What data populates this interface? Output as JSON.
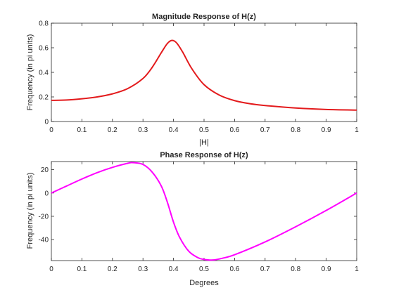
{
  "chart_data": [
    {
      "type": "line",
      "title": "Magnitude Response of H(z)",
      "xlabel": "|H|",
      "ylabel": "Frequency (in pi units)",
      "xlim": [
        0,
        1
      ],
      "ylim": [
        0,
        0.8
      ],
      "xticks": [
        0,
        0.1,
        0.2,
        0.3,
        0.4,
        0.5,
        0.6,
        0.7,
        0.8,
        0.9,
        1
      ],
      "xtick_labels": [
        "0",
        "0.1",
        "0.2",
        "0.3",
        "0.4",
        "0.5",
        "0.6",
        "0.7",
        "0.8",
        "0.9",
        "1"
      ],
      "yticks": [
        0,
        0.2,
        0.4,
        0.6,
        0.8
      ],
      "ytick_labels": [
        "0",
        "0.2",
        "0.4",
        "0.6",
        "0.8"
      ],
      "grid": false,
      "series": [
        {
          "color": "#e31a1c",
          "x": [
            0,
            0.05,
            0.1,
            0.15,
            0.2,
            0.25,
            0.3,
            0.33,
            0.36,
            0.38,
            0.395,
            0.41,
            0.43,
            0.46,
            0.5,
            0.55,
            0.6,
            0.65,
            0.7,
            0.8,
            0.9,
            1.0
          ],
          "y": [
            0.172,
            0.175,
            0.185,
            0.2,
            0.225,
            0.268,
            0.35,
            0.44,
            0.56,
            0.635,
            0.66,
            0.64,
            0.565,
            0.43,
            0.3,
            0.215,
            0.17,
            0.145,
            0.13,
            0.11,
            0.098,
            0.093
          ]
        }
      ]
    },
    {
      "type": "line",
      "title": "Phase Response of H(z)",
      "xlabel": "Degrees",
      "ylabel": "Frequency (in pi units)",
      "xlim": [
        0,
        1
      ],
      "ylim": [
        -58,
        27
      ],
      "xticks": [
        0,
        0.1,
        0.2,
        0.3,
        0.4,
        0.5,
        0.6,
        0.7,
        0.8,
        0.9,
        1
      ],
      "xtick_labels": [
        "0",
        "0.1",
        "0.2",
        "0.3",
        "0.4",
        "0.5",
        "0.6",
        "0.7",
        "0.8",
        "0.9",
        "1"
      ],
      "yticks": [
        -40,
        -20,
        0,
        20
      ],
      "ytick_labels": [
        "-40",
        "-20",
        "0",
        "20"
      ],
      "grid": false,
      "series": [
        {
          "color": "#ff00ff",
          "x": [
            0,
            0.05,
            0.1,
            0.15,
            0.2,
            0.25,
            0.27,
            0.3,
            0.33,
            0.36,
            0.38,
            0.4,
            0.42,
            0.45,
            0.48,
            0.5,
            0.53,
            0.56,
            0.6,
            0.7,
            0.8,
            0.9,
            1.0
          ],
          "y": [
            0,
            6,
            12,
            17.5,
            22,
            25.5,
            26,
            24.5,
            18,
            6,
            -8,
            -25,
            -38,
            -50,
            -55.5,
            -57,
            -57.5,
            -56,
            -53,
            -42,
            -29,
            -15,
            0
          ]
        }
      ]
    }
  ]
}
